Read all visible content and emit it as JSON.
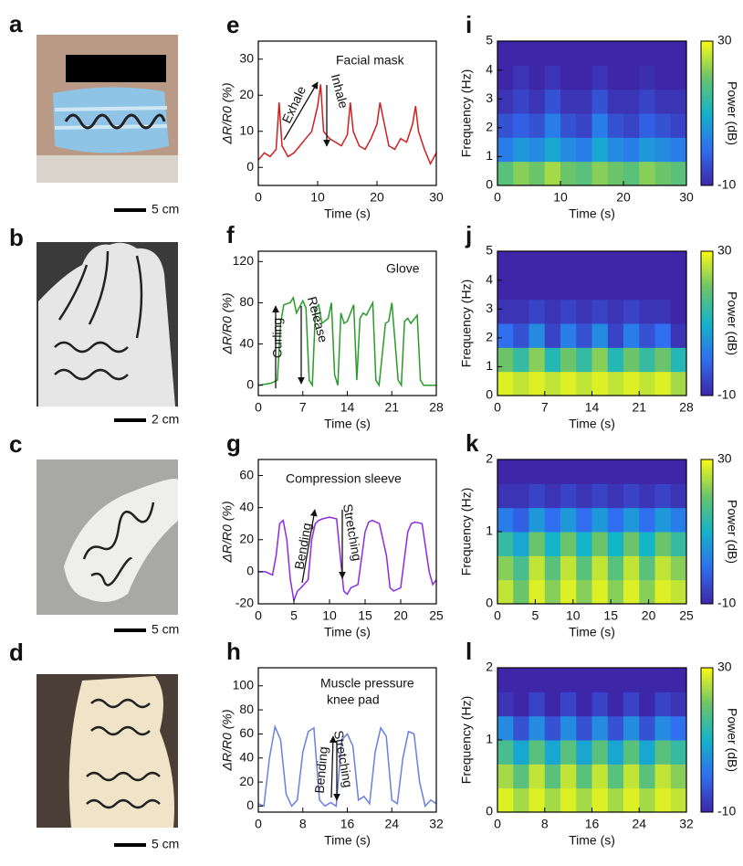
{
  "photos": [
    {
      "panel": "a",
      "scale_bar": "5 cm"
    },
    {
      "panel": "b",
      "scale_bar": "2 cm"
    },
    {
      "panel": "c",
      "scale_bar": "5 cm"
    },
    {
      "panel": "d",
      "scale_bar": "5 cm"
    }
  ],
  "chart_data": [
    {
      "type": "line",
      "panel": "e",
      "title": [
        "Facial mask"
      ],
      "annotations": [
        "Exhale",
        "Inhale"
      ],
      "color": "#cc1f1f",
      "xlabel": "Time (s)",
      "ylabel": "ΔR/R0 (%)",
      "xlim": [
        0,
        30
      ],
      "ylim": [
        -5,
        35
      ],
      "xticks": [
        0,
        10,
        20,
        30
      ],
      "yticks": [
        0,
        10,
        20,
        30
      ],
      "x": [
        0,
        1,
        2,
        3,
        3.5,
        4,
        5,
        6,
        7,
        8,
        9,
        10,
        10.5,
        11,
        12,
        13,
        14,
        15,
        15.5,
        16,
        17,
        18,
        19,
        20,
        20.5,
        21,
        22,
        23,
        24,
        25,
        26,
        26.5,
        27,
        28,
        29,
        30
      ],
      "y": [
        2,
        4,
        3,
        5,
        18,
        6,
        3,
        4,
        6,
        8,
        10,
        17,
        23,
        10,
        8,
        7,
        6,
        9,
        18,
        10,
        6,
        5,
        8,
        12,
        18,
        14,
        6,
        5,
        8,
        7,
        12,
        17,
        10,
        5,
        1,
        4
      ]
    },
    {
      "type": "line",
      "panel": "f",
      "title": [
        "Glove"
      ],
      "annotations": [
        "Curling",
        "Release"
      ],
      "color": "#2a9a2a",
      "xlabel": "Time (s)",
      "ylabel": "ΔR/R0 (%)",
      "xlim": [
        0,
        28
      ],
      "ylim": [
        -10,
        130
      ],
      "xticks": [
        0,
        7,
        14,
        21,
        28
      ],
      "yticks": [
        0,
        40,
        80,
        120
      ],
      "x": [
        0,
        2,
        3,
        3.5,
        4,
        5,
        5.5,
        6,
        7,
        7.5,
        8,
        8.5,
        9,
        9.5,
        10,
        11,
        11.5,
        12,
        12.5,
        13,
        13.5,
        14,
        15,
        15.5,
        16,
        16.5,
        17,
        18,
        18.5,
        19,
        20,
        20.5,
        21,
        22,
        22.5,
        23,
        23.5,
        24,
        25,
        25.5,
        26,
        28
      ],
      "y": [
        0,
        2,
        5,
        60,
        78,
        80,
        85,
        70,
        82,
        75,
        5,
        0,
        75,
        78,
        60,
        65,
        80,
        10,
        0,
        70,
        60,
        62,
        78,
        5,
        65,
        70,
        68,
        80,
        5,
        0,
        60,
        62,
        80,
        5,
        0,
        62,
        65,
        60,
        68,
        5,
        0,
        0
      ]
    },
    {
      "type": "line",
      "panel": "g",
      "title": [
        "Compression sleeve"
      ],
      "annotations": [
        "Bending",
        "Stretching"
      ],
      "color": "#8a2be2",
      "xlabel": "Time (s)",
      "ylabel": "ΔR/R0 (%)",
      "xlim": [
        0,
        25
      ],
      "ylim": [
        -20,
        70
      ],
      "xticks": [
        0,
        5,
        10,
        15,
        20,
        25
      ],
      "yticks": [
        -20,
        0,
        20,
        40,
        60
      ],
      "x": [
        0,
        1,
        2,
        2.5,
        3,
        3.5,
        4,
        4.5,
        5,
        5.5,
        6,
        7,
        7.5,
        8,
        8.5,
        9,
        10,
        11,
        11.5,
        12,
        12.5,
        13,
        14,
        15,
        15.5,
        16,
        17,
        18,
        18.5,
        19,
        20,
        21,
        21.5,
        22,
        23,
        24,
        24.5,
        25
      ],
      "y": [
        0,
        0,
        -2,
        10,
        30,
        32,
        20,
        -5,
        -18,
        -12,
        -10,
        -5,
        20,
        30,
        32,
        33,
        34,
        33,
        10,
        -12,
        -14,
        -10,
        -8,
        25,
        31,
        32,
        30,
        10,
        -10,
        -12,
        -10,
        25,
        30,
        31,
        30,
        0,
        -8,
        -5
      ]
    },
    {
      "type": "line",
      "panel": "h",
      "title": [
        "Muscle pressure",
        "knee pad"
      ],
      "annotations": [
        "Bending",
        "Stretching"
      ],
      "color": "#6a7fe0",
      "xlabel": "Time (s)",
      "ylabel": "ΔR/R0 (%)",
      "xlim": [
        0,
        32
      ],
      "ylim": [
        -5,
        115
      ],
      "xticks": [
        0,
        8,
        16,
        24,
        32
      ],
      "yticks": [
        0,
        20,
        40,
        60,
        80,
        100
      ],
      "x": [
        0,
        1,
        2,
        3,
        4,
        5,
        6,
        7,
        8,
        9,
        10,
        11,
        12,
        13,
        14,
        15,
        16,
        17,
        18,
        19,
        20,
        21,
        22,
        23,
        24,
        25,
        26,
        27,
        28,
        29,
        30,
        31,
        32
      ],
      "y": [
        2,
        0,
        40,
        66,
        55,
        10,
        0,
        5,
        45,
        62,
        65,
        5,
        0,
        3,
        0,
        55,
        60,
        50,
        5,
        8,
        2,
        45,
        65,
        58,
        5,
        2,
        40,
        62,
        60,
        20,
        0,
        5,
        2
      ]
    },
    {
      "type": "heatmap",
      "panel": "i",
      "xlabel": "Time (s)",
      "ylabel": "Frequency (Hz)",
      "clabel": "Power (dB)",
      "xlim": [
        0,
        30
      ],
      "ylim": [
        0,
        5
      ],
      "xticks": [
        0,
        10,
        20,
        30
      ],
      "yticks": [
        0,
        1,
        2,
        3,
        4,
        5
      ],
      "clim": [
        -10,
        30
      ],
      "cticks": [
        -10,
        30
      ],
      "colorscale": [
        "#3e26a8",
        "#2f6ff0",
        "#13b4c8",
        "#6cc46a",
        "#f9fb15"
      ],
      "z": [
        [
          18,
          22,
          20,
          24,
          20,
          18,
          22,
          20,
          18,
          22,
          20,
          18
        ],
        [
          2,
          6,
          4,
          8,
          4,
          2,
          8,
          4,
          2,
          6,
          4,
          2
        ],
        [
          -4,
          -2,
          -4,
          2,
          -4,
          -6,
          2,
          -4,
          -6,
          -2,
          -4,
          -6
        ],
        [
          -8,
          -6,
          -8,
          -4,
          -8,
          -8,
          -4,
          -8,
          -8,
          -6,
          -8,
          -8
        ],
        [
          -10,
          -8,
          -10,
          -8,
          -10,
          -10,
          -8,
          -10,
          -10,
          -9,
          -10,
          -10
        ],
        [
          -10,
          -10,
          -10,
          -10,
          -10,
          -10,
          -10,
          -10,
          -10,
          -10,
          -10,
          -10
        ]
      ]
    },
    {
      "type": "heatmap",
      "panel": "j",
      "xlabel": "Time (s)",
      "ylabel": "Frequency (Hz)",
      "clabel": "Power (dB)",
      "xlim": [
        0,
        28
      ],
      "ylim": [
        0,
        5
      ],
      "xticks": [
        0,
        7,
        14,
        21,
        28
      ],
      "yticks": [
        0,
        1,
        2,
        3,
        4,
        5
      ],
      "clim": [
        -10,
        30
      ],
      "cticks": [
        -10,
        30
      ],
      "colorscale": [
        "#3e26a8",
        "#2f6ff0",
        "#13b4c8",
        "#6cc46a",
        "#f9fb15"
      ],
      "z": [
        [
          28,
          26,
          28,
          26,
          28,
          26,
          28,
          26,
          28,
          26,
          28,
          24
        ],
        [
          20,
          14,
          22,
          12,
          20,
          14,
          22,
          12,
          20,
          14,
          20,
          12
        ],
        [
          0,
          -4,
          4,
          -6,
          2,
          -4,
          4,
          -6,
          2,
          -4,
          0,
          -8
        ],
        [
          -8,
          -8,
          -6,
          -8,
          -6,
          -8,
          -6,
          -8,
          -6,
          -8,
          -8,
          -10
        ],
        [
          -10,
          -10,
          -10,
          -10,
          -10,
          -10,
          -10,
          -10,
          -10,
          -10,
          -10,
          -10
        ],
        [
          -10,
          -10,
          -10,
          -10,
          -10,
          -10,
          -10,
          -10,
          -10,
          -10,
          -10,
          -10
        ]
      ]
    },
    {
      "type": "heatmap",
      "panel": "k",
      "xlabel": "Time (s)",
      "ylabel": "Frequency (Hz)",
      "clabel": "Power (dB)",
      "xlim": [
        0,
        25
      ],
      "ylim": [
        0,
        2
      ],
      "xticks": [
        0,
        5,
        10,
        15,
        20,
        25
      ],
      "yticks": [
        0,
        1,
        2
      ],
      "clim": [
        -10,
        30
      ],
      "cticks": [
        -10,
        30
      ],
      "colorscale": [
        "#3e26a8",
        "#2f6ff0",
        "#13b4c8",
        "#6cc46a",
        "#f9fb15"
      ],
      "z": [
        [
          26,
          20,
          28,
          22,
          28,
          22,
          28,
          22,
          28,
          22,
          28,
          26
        ],
        [
          22,
          16,
          26,
          18,
          26,
          18,
          26,
          18,
          26,
          18,
          26,
          22
        ],
        [
          14,
          8,
          20,
          10,
          20,
          10,
          20,
          10,
          20,
          10,
          20,
          14
        ],
        [
          2,
          -2,
          6,
          0,
          6,
          0,
          6,
          0,
          6,
          0,
          6,
          2
        ],
        [
          -8,
          -8,
          -6,
          -8,
          -6,
          -8,
          -6,
          -8,
          -6,
          -8,
          -6,
          -8
        ],
        [
          -10,
          -10,
          -10,
          -10,
          -10,
          -10,
          -10,
          -10,
          -10,
          -10,
          -10,
          -10
        ]
      ]
    },
    {
      "type": "heatmap",
      "panel": "l",
      "xlabel": "Time (s)",
      "ylabel": "Frequency (Hz)",
      "clabel": "Power (dB)",
      "xlim": [
        0,
        32
      ],
      "ylim": [
        0,
        2
      ],
      "xticks": [
        0,
        8,
        16,
        24,
        32
      ],
      "yticks": [
        0,
        1,
        2
      ],
      "clim": [
        -10,
        30
      ],
      "cticks": [
        -10,
        30
      ],
      "colorscale": [
        "#3e26a8",
        "#2f6ff0",
        "#13b4c8",
        "#6cc46a",
        "#f9fb15"
      ],
      "z": [
        [
          28,
          24,
          28,
          24,
          28,
          24,
          28,
          24,
          28,
          24,
          28,
          26
        ],
        [
          24,
          18,
          26,
          18,
          26,
          18,
          26,
          18,
          26,
          18,
          26,
          22
        ],
        [
          16,
          8,
          18,
          8,
          18,
          8,
          18,
          8,
          18,
          8,
          18,
          14
        ],
        [
          4,
          -4,
          4,
          -4,
          4,
          -4,
          4,
          -4,
          4,
          -4,
          4,
          0
        ],
        [
          -8,
          -10,
          -6,
          -10,
          -6,
          -10,
          -6,
          -10,
          -6,
          -10,
          -6,
          -8
        ],
        [
          -10,
          -10,
          -10,
          -10,
          -10,
          -10,
          -10,
          -10,
          -10,
          -10,
          -10,
          -10
        ]
      ]
    }
  ]
}
